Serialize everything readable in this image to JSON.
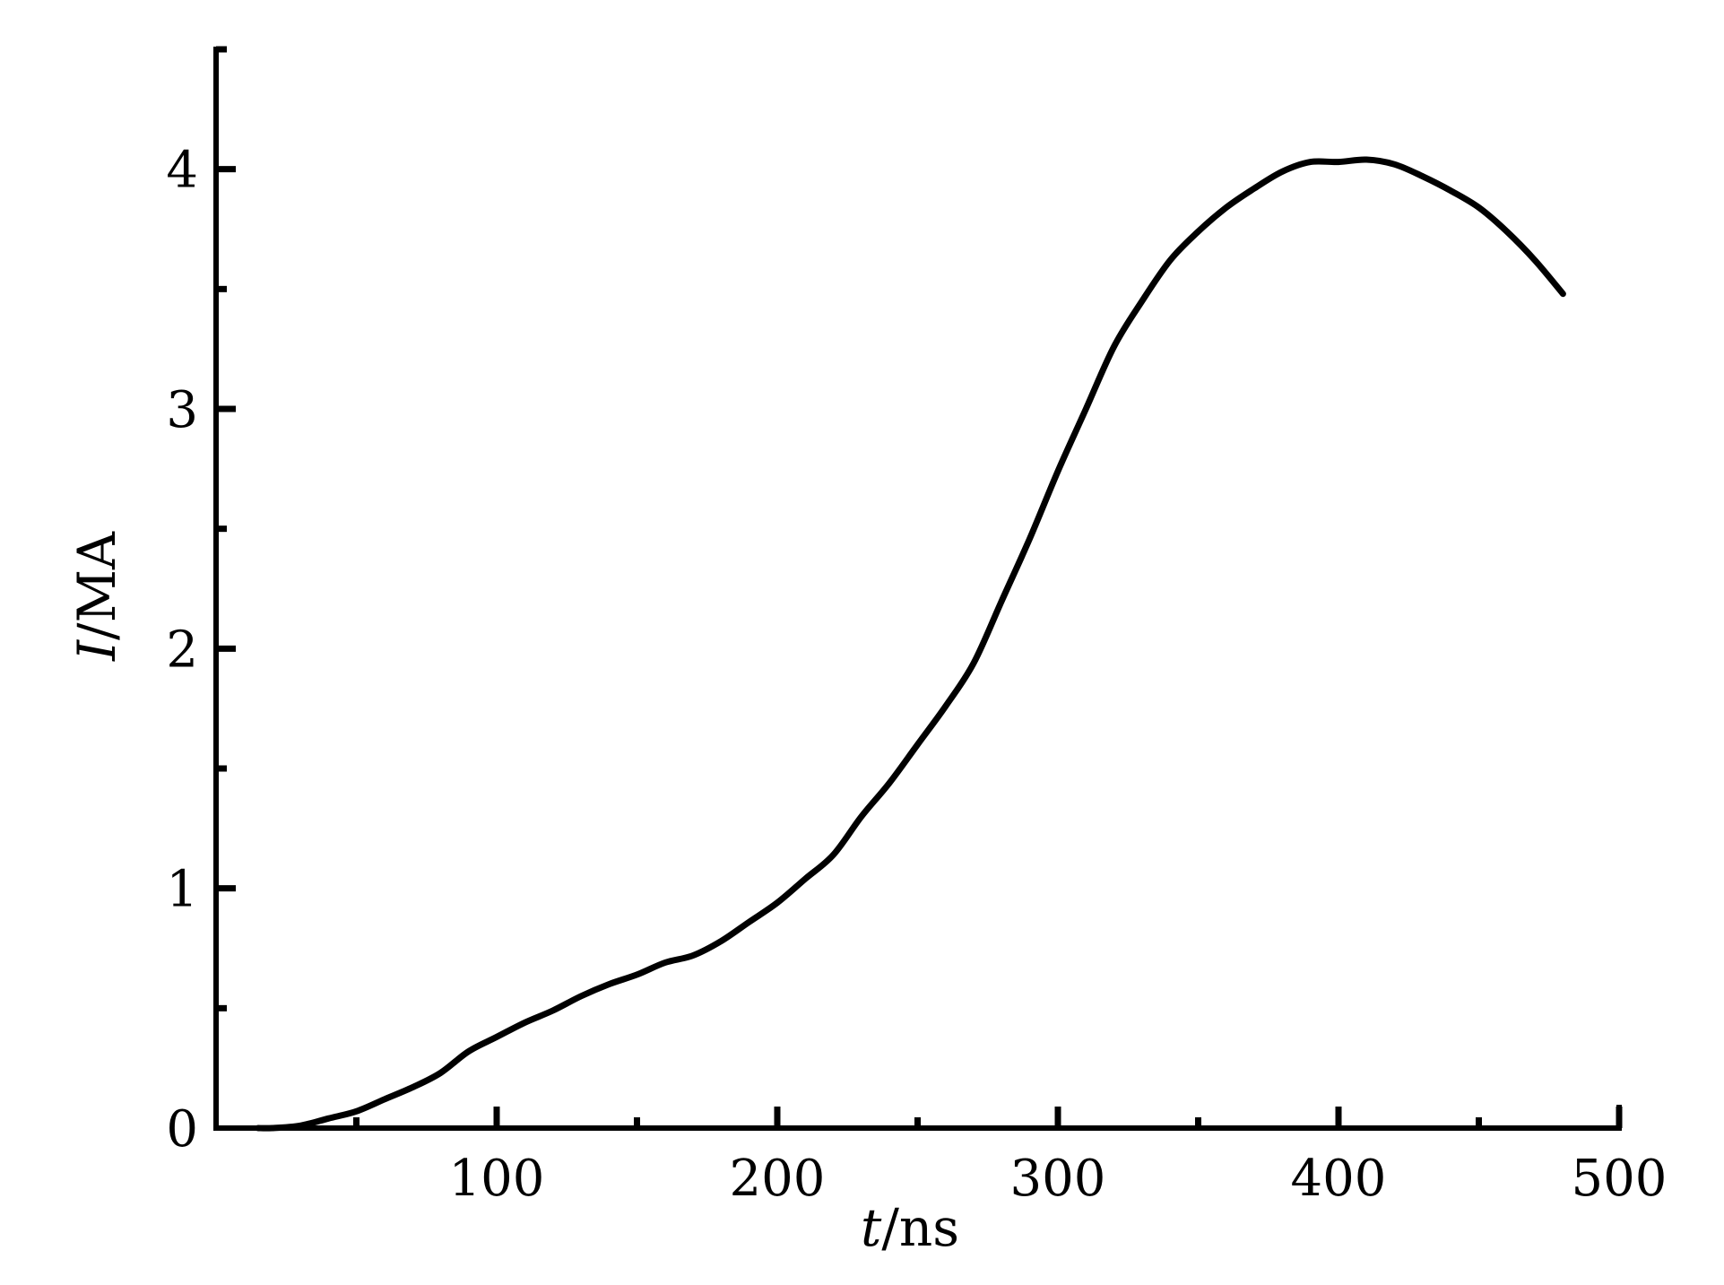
{
  "chart_data": {
    "type": "line",
    "title": "",
    "xlabel": {
      "italic": "t",
      "rest": "/ns"
    },
    "ylabel": {
      "italic": "I",
      "rest": "/MA"
    },
    "xlim": [
      0,
      500
    ],
    "ylim": [
      0,
      4.5
    ],
    "x_ticks": [
      100,
      200,
      300,
      400,
      500
    ],
    "x_tick_labels": [
      "100",
      "200",
      "300",
      "400",
      "500"
    ],
    "x_minor_ticks": [
      50,
      150,
      250,
      350,
      450
    ],
    "y_ticks": [
      0,
      1,
      2,
      3,
      4
    ],
    "y_tick_labels": [
      "0",
      "1",
      "2",
      "3",
      "4"
    ],
    "y_minor_ticks": [
      0.5,
      1.5,
      2.5,
      3.5,
      4.5
    ],
    "grid": false,
    "legend": "none",
    "line_color": "#000000",
    "series": [
      {
        "x": [
          15,
          20,
          30,
          40,
          50,
          60,
          70,
          80,
          90,
          100,
          110,
          120,
          130,
          140,
          150,
          160,
          170,
          180,
          190,
          200,
          210,
          220,
          230,
          240,
          250,
          260,
          270,
          280,
          290,
          300,
          310,
          320,
          330,
          340,
          350,
          360,
          370,
          380,
          390,
          400,
          410,
          420,
          430,
          440,
          450,
          460,
          470,
          480
        ],
        "y": [
          0.0,
          0.0,
          0.01,
          0.04,
          0.07,
          0.12,
          0.17,
          0.23,
          0.32,
          0.38,
          0.44,
          0.49,
          0.55,
          0.6,
          0.64,
          0.69,
          0.72,
          0.78,
          0.86,
          0.94,
          1.04,
          1.14,
          1.3,
          1.44,
          1.6,
          1.76,
          1.94,
          2.2,
          2.46,
          2.74,
          3.0,
          3.26,
          3.45,
          3.62,
          3.74,
          3.84,
          3.92,
          3.99,
          4.03,
          4.03,
          4.04,
          4.02,
          3.97,
          3.91,
          3.84,
          3.74,
          3.62,
          3.48
        ]
      }
    ]
  }
}
